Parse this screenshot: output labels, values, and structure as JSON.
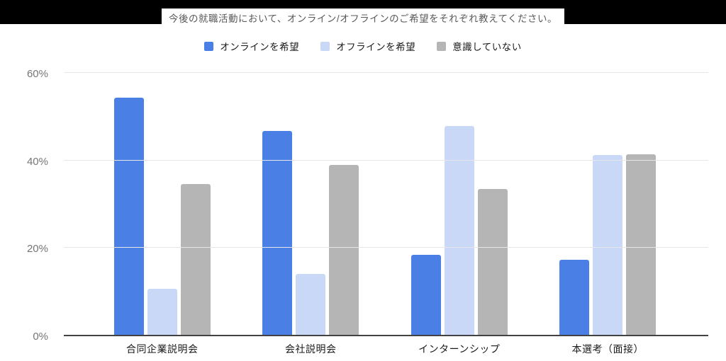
{
  "header": {
    "title": "今後の就職活動において、オンライン/オフラインのご希望をそれぞれ教えてください。",
    "bar_color": "#000000",
    "title_text_color": "#595959"
  },
  "palette": {
    "grid_color": "#e6e6e6",
    "axis_color": "#424242",
    "y_label_color": "#757575",
    "x_label_color": "#1a1a1a"
  },
  "chart_data": {
    "type": "bar",
    "title": "今後の就職活動において、オンライン/オフラインのご希望をそれぞれ教えてください。",
    "categories": [
      "合同企業説明会",
      "会社説明会",
      "インターンシップ",
      "本選考（面接）"
    ],
    "series": [
      {
        "name": "オンラインを希望",
        "color": "#4a80e6",
        "values": [
          54.5,
          46.8,
          18.3,
          17.3
        ]
      },
      {
        "name": "オフラインを希望",
        "color": "#c9d8f6",
        "values": [
          10.5,
          14.0,
          47.9,
          41.3
        ]
      },
      {
        "name": "意識していない",
        "color": "#b5b5b5",
        "values": [
          34.6,
          39.1,
          33.5,
          41.4
        ]
      }
    ],
    "xlabel": "",
    "ylabel": "",
    "ylim": [
      0,
      60
    ],
    "y_ticks": [
      {
        "label": "0%",
        "value": 0
      },
      {
        "label": "20%",
        "value": 20
      },
      {
        "label": "40%",
        "value": 40
      },
      {
        "label": "60%",
        "value": 60
      }
    ],
    "grid": true,
    "legend_position": "top"
  }
}
